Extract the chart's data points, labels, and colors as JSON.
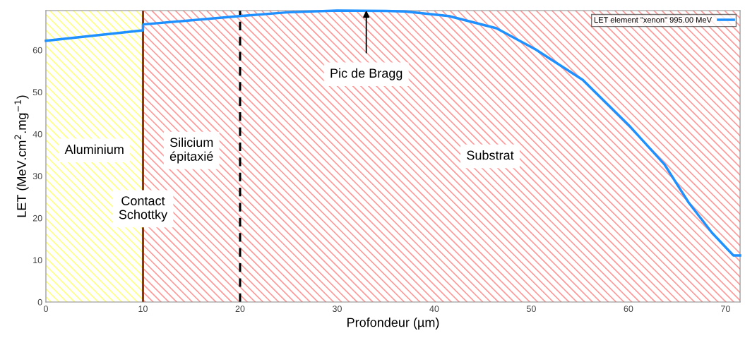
{
  "chart_data": {
    "type": "line",
    "xlabel": "Profondeur (µm)",
    "ylabel": "LET (MeV.cm$^{2}$.mg$^{−1}$)",
    "xlim": [
      0,
      71.5
    ],
    "ylim": [
      0,
      69.4
    ],
    "xticks": [
      0,
      10,
      20,
      30,
      40,
      50,
      60,
      70
    ],
    "yticks": [
      0,
      10,
      20,
      30,
      40,
      50,
      60
    ],
    "grid": false,
    "legend": "top right",
    "marker": "none",
    "line_style": "solid",
    "series": [
      {
        "name": "LET element \"xenon\" 995.00 MeV",
        "color": "#1e90ff",
        "x": [
          0,
          10,
          10,
          20,
          25,
          30,
          35,
          37,
          41.5,
          46.4,
          50.4,
          55.3,
          60.2,
          63.7,
          66.2,
          68.6,
          70.8,
          71.5
        ],
        "values": [
          62.2,
          64.7,
          66.1,
          68.1,
          69.0,
          69.4,
          69.3,
          69.2,
          68.1,
          65.2,
          60.2,
          52.9,
          41.7,
          32.8,
          23.7,
          16.5,
          11.1,
          11.1
        ]
      }
    ],
    "bands": [
      {
        "axis": "x",
        "from": 0,
        "to": 10,
        "label": "Aluminium",
        "color": "#ffff80"
      },
      {
        "axis": "x",
        "from": 10,
        "to": 20,
        "label": "Silicium\népitaxié",
        "color": "#ff9999"
      },
      {
        "axis": "x",
        "from": 20,
        "to": 71.5,
        "label": "Substrat",
        "color": "#ff9999"
      }
    ],
    "ref_lines": [
      {
        "axis": "x",
        "value": 10,
        "label": "Contact\nSchottky",
        "color": "#993300",
        "line_style": "solid"
      },
      {
        "axis": "x",
        "value": 20,
        "color": "#000000",
        "line_style": "dashed"
      }
    ],
    "annotations": [
      {
        "text": "Pic de Bragg",
        "x": 33,
        "y": 69.4
      }
    ]
  }
}
